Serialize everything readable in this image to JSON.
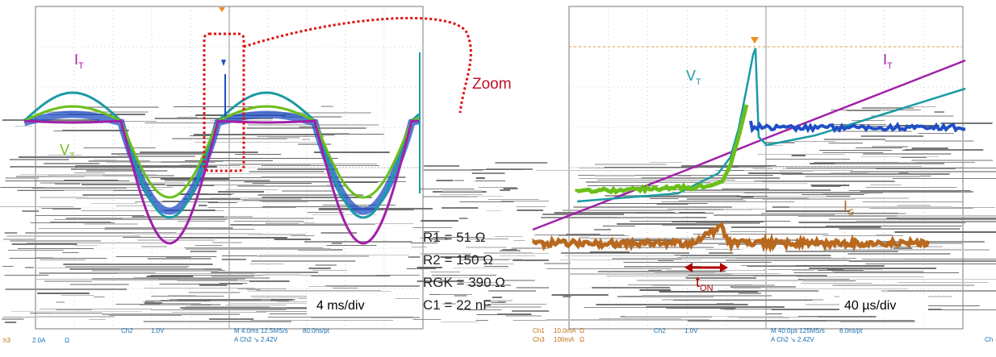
{
  "colors": {
    "it_trace": "#a020a8",
    "vt_trace_teal": "#1b9aa4",
    "vt_trace_blue": "#1f4fc6",
    "vt_trace_green": "#6bbf1a",
    "ig_trace": "#b8691f",
    "grid": "#7a7a7a",
    "grid_dots": "#bdbdbd",
    "zoom_marker": "#e01010",
    "background": "#ffffff"
  },
  "left_scope": {
    "label_it": "I",
    "label_it_sub": "T",
    "label_vt": "V",
    "label_vt_sub": "T",
    "timebase_label": "4 ms/div",
    "status": {
      "ch3_name": "h3",
      "ch3_scale": "2.0A",
      "ch3_unit": "Ω",
      "ch2_name": "Ch2",
      "ch2_scale": "1.0V",
      "m_line": "M 4.0ms 12.5MS/s",
      "rate": "80.0ns/pt",
      "trig_line": "A Ch2 ↘ 2.42V"
    }
  },
  "zoom": {
    "label": "Zoom"
  },
  "parameters": {
    "r1": "R1 = 51 Ω",
    "r2": "R2 = 150 Ω",
    "rgk": "RGK = 390 Ω",
    "c1": "C1 = 22 nF"
  },
  "right_scope": {
    "label_vt": "V",
    "label_vt_sub": "T",
    "label_it": "I",
    "label_it_sub": "T",
    "label_ig": "I",
    "label_ig_sub": "G",
    "ton_label": "t",
    "ton_sub": "ON",
    "timebase_label": "40 µs/div",
    "status": {
      "ch1_name": "Ch1",
      "ch1_scale": "10.0mA",
      "ch1_unit": "Ω",
      "ch3_name": "Ch3",
      "ch3_scale": "100mA",
      "ch3_unit": "Ω",
      "ch2_name": "Ch2",
      "ch2_scale": "1.0V",
      "m_line": "M 40.0µs 125MS/s",
      "rate": "8.0ns/pt",
      "trig_line": "A Ch2 ↘ 2.42V",
      "edge": "Ch"
    }
  },
  "chart_data": [
    {
      "type": "line",
      "title": "",
      "xlabel": "",
      "ylabel": "",
      "timebase": "4 ms/div",
      "grid": true,
      "series": [
        {
          "name": "IT",
          "description_visible": "half-sine bursts",
          "x": [
            0,
            1,
            2,
            3,
            4,
            5,
            6,
            7,
            8,
            9,
            10
          ],
          "values": [
            0.0,
            0.6,
            1.0,
            0.6,
            0.0,
            -0.6,
            -1.0,
            -0.6,
            0.0,
            0.6,
            1.0
          ]
        },
        {
          "name": "VT",
          "x": [
            0,
            1,
            2,
            3,
            4,
            5,
            6,
            7,
            8,
            9,
            10
          ],
          "values": [
            0.0,
            0.7,
            0.8,
            0.7,
            0.0,
            -0.7,
            -0.8,
            -0.7,
            0.0,
            0.7,
            0.8
          ]
        }
      ]
    },
    {
      "type": "line",
      "title": "",
      "xlabel": "",
      "ylabel": "",
      "timebase": "40 µs/div",
      "grid": true,
      "series": [
        {
          "name": "VT",
          "x": [
            0,
            2,
            4,
            5,
            5.5,
            6,
            7,
            10
          ],
          "values": [
            -0.4,
            -0.35,
            -0.3,
            0.1,
            0.9,
            0.1,
            0.05,
            0.05
          ]
        },
        {
          "name": "IT",
          "x": [
            0,
            2,
            4,
            6,
            8,
            10
          ],
          "values": [
            -0.9,
            -0.6,
            -0.3,
            0.0,
            0.45,
            0.9
          ]
        },
        {
          "name": "IG",
          "x": [
            0,
            4,
            4.6,
            5,
            6,
            10
          ],
          "values": [
            -1.1,
            -1.1,
            -0.95,
            -1.1,
            -1.1,
            -1.1
          ]
        }
      ]
    }
  ]
}
